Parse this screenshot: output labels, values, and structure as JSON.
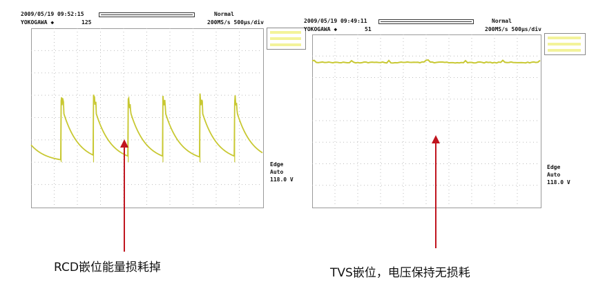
{
  "left_scope": {
    "datetime": "2009/05/19 09:52:15",
    "brand": "YOKOGAWA ◆",
    "count": "125",
    "mode": "Normal",
    "sample_rate": "200MS/s 500µs/div",
    "trigger_type": "Edge",
    "trigger_mode": "Auto",
    "trigger_level": "118.0 V",
    "caption": "RCD嵌位能量损耗掉"
  },
  "right_scope": {
    "datetime": "2009/05/19 09:49:11",
    "brand": "YOKOGAWA ◆",
    "count": "51",
    "mode": "Normal",
    "sample_rate": "200MS/s 500µs/div",
    "trigger_type": "Edge",
    "trigger_mode": "Auto",
    "trigger_level": "118.0 V",
    "caption": "TVS嵌位，电压保持无损耗"
  },
  "colors": {
    "trace": "#c8c832",
    "arrow": "#c0141e",
    "grid": "#bbbbbb"
  },
  "chart_data": [
    {
      "type": "line",
      "title": "",
      "xlabel": "",
      "ylabel": "",
      "grid": true,
      "x_divisions": 10,
      "y_divisions": 8,
      "time_per_div_us": 500,
      "description_values": "RCD clamp: sawtooth with exponential decay, spikes at each switching edge",
      "series": [
        {
          "pulse_times_us": [
            650,
            1350,
            2100,
            2850,
            3650,
            4400
          ],
          "peak_div": 4.6,
          "trough_div": 2.0
        }
      ]
    },
    {
      "type": "line",
      "title": "",
      "xlabel": "",
      "ylabel": "",
      "grid": true,
      "x_divisions": 10,
      "y_divisions": 8,
      "time_per_div_us": 500,
      "series": [
        {
          "level_div": 6.7,
          "small_spikes": true
        }
      ]
    }
  ]
}
